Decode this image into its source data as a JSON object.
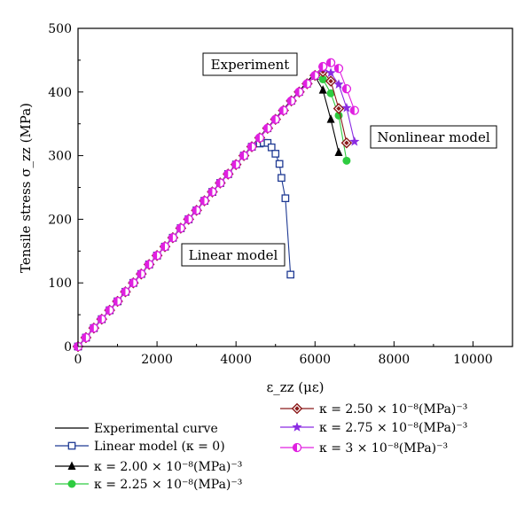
{
  "chart_data": {
    "type": "line",
    "xlabel": "ε_zz (με)",
    "ylabel": "Tensile stress σ_zz (MPa)",
    "xlim": [
      0,
      11000
    ],
    "ylim": [
      0,
      500
    ],
    "xticks": [
      "0",
      "2000",
      "4000",
      "6000",
      "8000",
      "10000"
    ],
    "yticks": [
      "0",
      "100",
      "200",
      "300",
      "400",
      "500"
    ],
    "legend_position": "bottom",
    "series": [
      {
        "name": "Experimental curve",
        "color": "#000000",
        "marker": "none",
        "points": [
          [
            0,
            0
          ],
          [
            2000,
            143
          ],
          [
            4000,
            286
          ],
          [
            5900,
            423
          ]
        ]
      },
      {
        "name": "Linear model (κ = 0)",
        "color": "#1f3a93",
        "marker": "open-square",
        "points": [
          [
            0,
            0
          ],
          [
            200,
            14
          ],
          [
            400,
            29
          ],
          [
            600,
            43
          ],
          [
            800,
            57
          ],
          [
            1000,
            71
          ],
          [
            1200,
            86
          ],
          [
            1400,
            100
          ],
          [
            1600,
            114
          ],
          [
            1800,
            129
          ],
          [
            2000,
            143
          ],
          [
            2200,
            157
          ],
          [
            2400,
            171
          ],
          [
            2600,
            186
          ],
          [
            2800,
            200
          ],
          [
            3000,
            214
          ],
          [
            3200,
            229
          ],
          [
            3400,
            243
          ],
          [
            3600,
            257
          ],
          [
            3800,
            271
          ],
          [
            4000,
            286
          ],
          [
            4200,
            300
          ],
          [
            4400,
            314
          ],
          [
            4600,
            319
          ],
          [
            4700,
            320
          ],
          [
            4800,
            320
          ],
          [
            4900,
            313
          ],
          [
            5000,
            303
          ],
          [
            5100,
            287
          ],
          [
            5150,
            265
          ],
          [
            5250,
            233
          ],
          [
            5380,
            113
          ]
        ]
      },
      {
        "name": "κ = 2.00 × 10⁻⁸(MPa)⁻³",
        "color": "#000000",
        "marker": "filled-triangle",
        "points": [
          [
            0,
            0
          ],
          [
            200,
            14
          ],
          [
            400,
            29
          ],
          [
            600,
            43
          ],
          [
            800,
            57
          ],
          [
            1000,
            71
          ],
          [
            1200,
            86
          ],
          [
            1400,
            100
          ],
          [
            1600,
            114
          ],
          [
            1800,
            129
          ],
          [
            2000,
            143
          ],
          [
            2200,
            157
          ],
          [
            2400,
            171
          ],
          [
            2600,
            186
          ],
          [
            2800,
            200
          ],
          [
            3000,
            214
          ],
          [
            3200,
            229
          ],
          [
            3400,
            243
          ],
          [
            3600,
            257
          ],
          [
            3800,
            271
          ],
          [
            4000,
            286
          ],
          [
            4200,
            300
          ],
          [
            4400,
            314
          ],
          [
            4600,
            328
          ],
          [
            4800,
            343
          ],
          [
            5000,
            357
          ],
          [
            5200,
            371
          ],
          [
            5400,
            386
          ],
          [
            5600,
            400
          ],
          [
            5800,
            413
          ],
          [
            6000,
            425
          ],
          [
            6200,
            403
          ],
          [
            6400,
            357
          ],
          [
            6600,
            305
          ]
        ]
      },
      {
        "name": "κ = 2.25 × 10⁻⁸(MPa)⁻³",
        "color": "#2ecc40",
        "marker": "filled-circle",
        "points": [
          [
            0,
            0
          ],
          [
            200,
            14
          ],
          [
            400,
            29
          ],
          [
            600,
            43
          ],
          [
            800,
            57
          ],
          [
            1000,
            71
          ],
          [
            1200,
            86
          ],
          [
            1400,
            100
          ],
          [
            1600,
            114
          ],
          [
            1800,
            129
          ],
          [
            2000,
            143
          ],
          [
            2200,
            157
          ],
          [
            2400,
            171
          ],
          [
            2600,
            186
          ],
          [
            2800,
            200
          ],
          [
            3000,
            214
          ],
          [
            3200,
            229
          ],
          [
            3400,
            243
          ],
          [
            3600,
            257
          ],
          [
            3800,
            271
          ],
          [
            4000,
            286
          ],
          [
            4200,
            300
          ],
          [
            4400,
            314
          ],
          [
            4600,
            328
          ],
          [
            4800,
            343
          ],
          [
            5000,
            357
          ],
          [
            5200,
            371
          ],
          [
            5400,
            386
          ],
          [
            5600,
            400
          ],
          [
            5800,
            413
          ],
          [
            6000,
            426
          ],
          [
            6200,
            420
          ],
          [
            6400,
            398
          ],
          [
            6600,
            363
          ],
          [
            6800,
            292
          ]
        ]
      },
      {
        "name": "κ = 2.50 × 10⁻⁸(MPa)⁻³",
        "color": "#8b1a1a",
        "marker": "open-diamond",
        "points": [
          [
            0,
            0
          ],
          [
            200,
            14
          ],
          [
            400,
            29
          ],
          [
            600,
            43
          ],
          [
            800,
            57
          ],
          [
            1000,
            71
          ],
          [
            1200,
            86
          ],
          [
            1400,
            100
          ],
          [
            1600,
            114
          ],
          [
            1800,
            129
          ],
          [
            2000,
            143
          ],
          [
            2200,
            157
          ],
          [
            2400,
            171
          ],
          [
            2600,
            186
          ],
          [
            2800,
            200
          ],
          [
            3000,
            214
          ],
          [
            3200,
            229
          ],
          [
            3400,
            243
          ],
          [
            3600,
            257
          ],
          [
            3800,
            271
          ],
          [
            4000,
            286
          ],
          [
            4200,
            300
          ],
          [
            4400,
            314
          ],
          [
            4600,
            328
          ],
          [
            4800,
            343
          ],
          [
            5000,
            357
          ],
          [
            5200,
            371
          ],
          [
            5400,
            386
          ],
          [
            5600,
            400
          ],
          [
            5800,
            413
          ],
          [
            6000,
            426
          ],
          [
            6200,
            432
          ],
          [
            6400,
            417
          ],
          [
            6600,
            374
          ],
          [
            6800,
            320
          ]
        ]
      },
      {
        "name": "κ = 2.75 × 10⁻⁸(MPa)⁻³",
        "color": "#8a2be2",
        "marker": "filled-star",
        "points": [
          [
            0,
            0
          ],
          [
            200,
            14
          ],
          [
            400,
            29
          ],
          [
            600,
            43
          ],
          [
            800,
            57
          ],
          [
            1000,
            71
          ],
          [
            1200,
            86
          ],
          [
            1400,
            100
          ],
          [
            1600,
            114
          ],
          [
            1800,
            129
          ],
          [
            2000,
            143
          ],
          [
            2200,
            157
          ],
          [
            2400,
            171
          ],
          [
            2600,
            186
          ],
          [
            2800,
            200
          ],
          [
            3000,
            214
          ],
          [
            3200,
            229
          ],
          [
            3400,
            243
          ],
          [
            3600,
            257
          ],
          [
            3800,
            271
          ],
          [
            4000,
            286
          ],
          [
            4200,
            300
          ],
          [
            4400,
            314
          ],
          [
            4600,
            328
          ],
          [
            4800,
            343
          ],
          [
            5000,
            357
          ],
          [
            5200,
            371
          ],
          [
            5400,
            386
          ],
          [
            5600,
            400
          ],
          [
            5800,
            413
          ],
          [
            6000,
            426
          ],
          [
            6200,
            437
          ],
          [
            6400,
            430
          ],
          [
            6600,
            412
          ],
          [
            6800,
            375
          ],
          [
            7000,
            322
          ]
        ]
      },
      {
        "name": "κ = 3 × 10⁻⁸(MPa)⁻³",
        "color": "#e020e0",
        "marker": "half-circle",
        "points": [
          [
            0,
            0
          ],
          [
            200,
            14
          ],
          [
            400,
            29
          ],
          [
            600,
            43
          ],
          [
            800,
            57
          ],
          [
            1000,
            71
          ],
          [
            1200,
            86
          ],
          [
            1400,
            100
          ],
          [
            1600,
            114
          ],
          [
            1800,
            129
          ],
          [
            2000,
            143
          ],
          [
            2200,
            157
          ],
          [
            2400,
            171
          ],
          [
            2600,
            186
          ],
          [
            2800,
            200
          ],
          [
            3000,
            214
          ],
          [
            3200,
            229
          ],
          [
            3400,
            243
          ],
          [
            3600,
            257
          ],
          [
            3800,
            271
          ],
          [
            4000,
            286
          ],
          [
            4200,
            300
          ],
          [
            4400,
            314
          ],
          [
            4600,
            328
          ],
          [
            4800,
            343
          ],
          [
            5000,
            357
          ],
          [
            5200,
            371
          ],
          [
            5400,
            386
          ],
          [
            5600,
            400
          ],
          [
            5800,
            413
          ],
          [
            6000,
            426
          ],
          [
            6200,
            440
          ],
          [
            6400,
            446
          ],
          [
            6600,
            437
          ],
          [
            6800,
            405
          ],
          [
            7000,
            371
          ]
        ]
      }
    ],
    "annotations": [
      "Experiment",
      "Nonlinear model",
      "Linear model"
    ]
  }
}
